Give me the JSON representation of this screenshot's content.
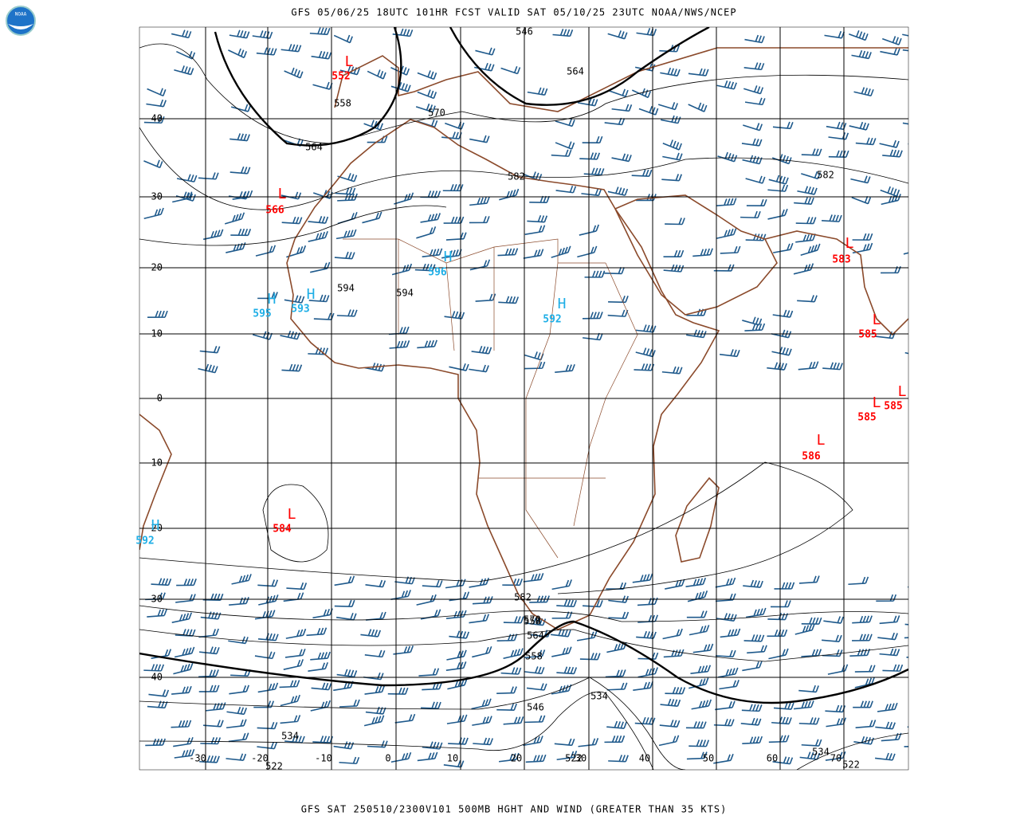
{
  "header": {
    "title": "GFS 05/06/25 18UTC 101HR FCST VALID SAT 05/10/25 23UTC NOAA/NWS/NCEP",
    "footer": "GFS SAT 250510/2300V101 500MB HGHT AND WIND (GREATER THAN 35 KTS)",
    "logo": "NOAA"
  },
  "lat_labels": [
    "40",
    "30",
    "20",
    "10",
    "0",
    "-10",
    "-20",
    "-30",
    "-40"
  ],
  "lon_labels": [
    "-30",
    "-20",
    "-10",
    "0",
    "10",
    "20",
    "30",
    "40",
    "50",
    "60",
    "70"
  ],
  "contour_labels": [
    "546",
    "558",
    "564",
    "558",
    "564",
    "570",
    "582",
    "594",
    "594",
    "582",
    "582",
    "570",
    "564",
    "558",
    "546",
    "534",
    "534",
    "522",
    "522",
    "534",
    "522"
  ],
  "centers": [
    {
      "symbol": "L",
      "value": "552"
    },
    {
      "symbol": "L",
      "value": "566"
    },
    {
      "symbol": "H",
      "value": "595"
    },
    {
      "symbol": "H",
      "value": "593"
    },
    {
      "symbol": "H",
      "value": "596"
    },
    {
      "symbol": "H",
      "value": "592"
    },
    {
      "symbol": "L",
      "value": "583"
    },
    {
      "symbol": "L",
      "value": "585"
    },
    {
      "symbol": "L",
      "value": "585"
    },
    {
      "symbol": "L",
      "value": "585"
    },
    {
      "symbol": "L",
      "value": "586"
    },
    {
      "symbol": "L",
      "value": "584"
    },
    {
      "symbol": "H",
      "value": "592"
    }
  ]
}
